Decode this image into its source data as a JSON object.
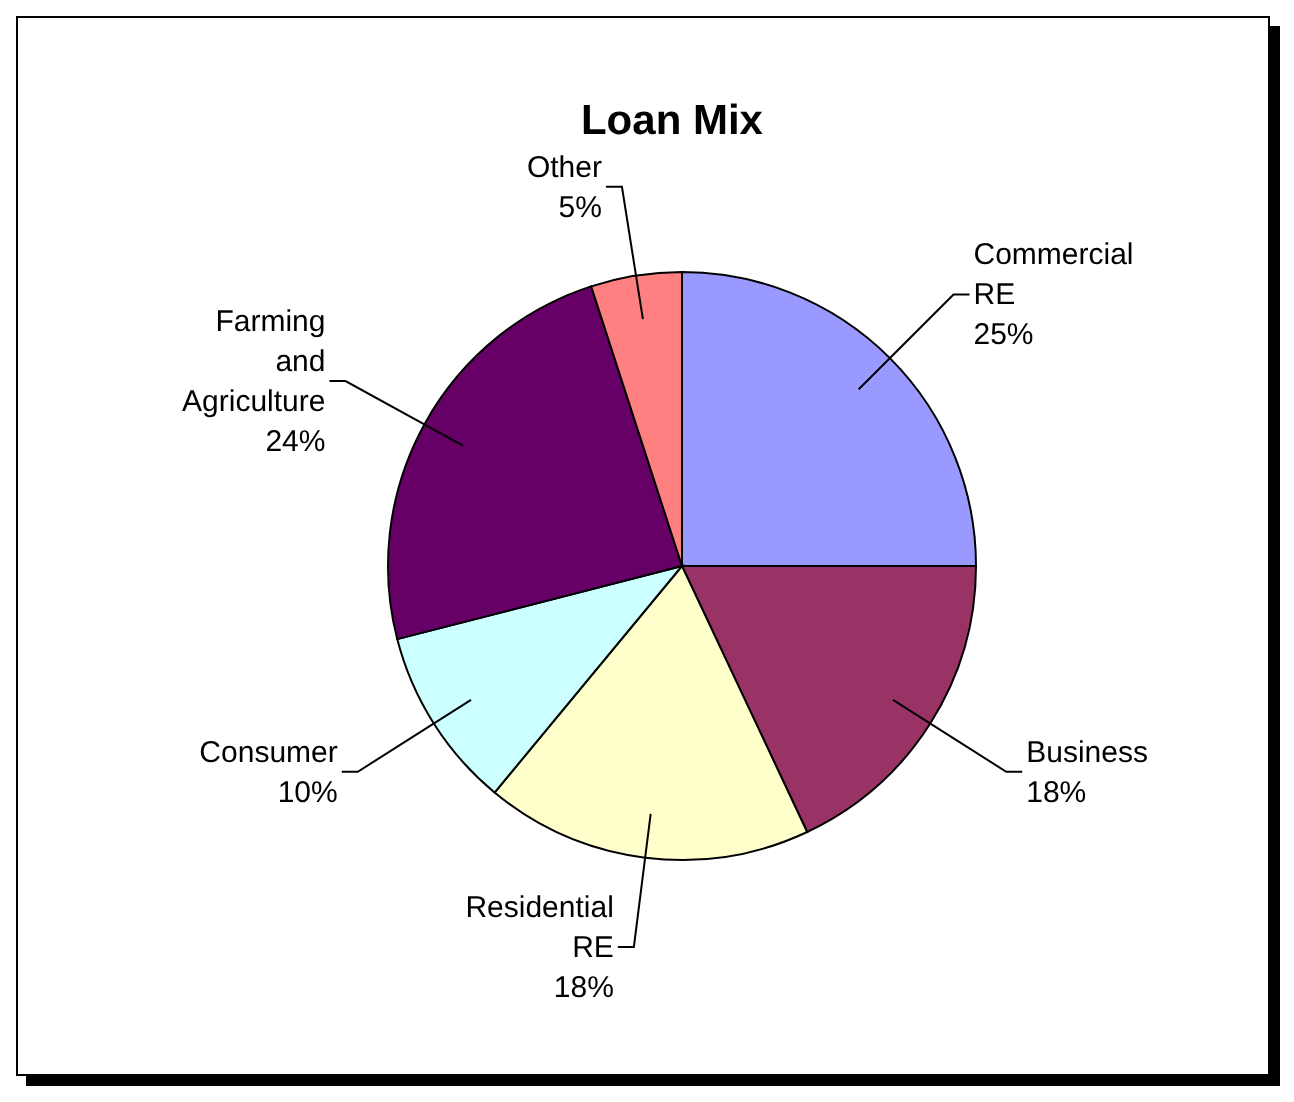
{
  "chart_data": {
    "type": "pie",
    "title": "Loan Mix",
    "categories": [
      "Commercial RE",
      "Business",
      "Residential RE",
      "Consumer",
      "Farming and Agriculture",
      "Other"
    ],
    "values": [
      25,
      18,
      18,
      10,
      24,
      5
    ],
    "value_labels": [
      "25%",
      "18%",
      "18%",
      "10%",
      "24%",
      "5%"
    ],
    "colors": [
      "#9999ff",
      "#993366",
      "#ffffcc",
      "#ccffff",
      "#660066",
      "#ff8080"
    ]
  }
}
